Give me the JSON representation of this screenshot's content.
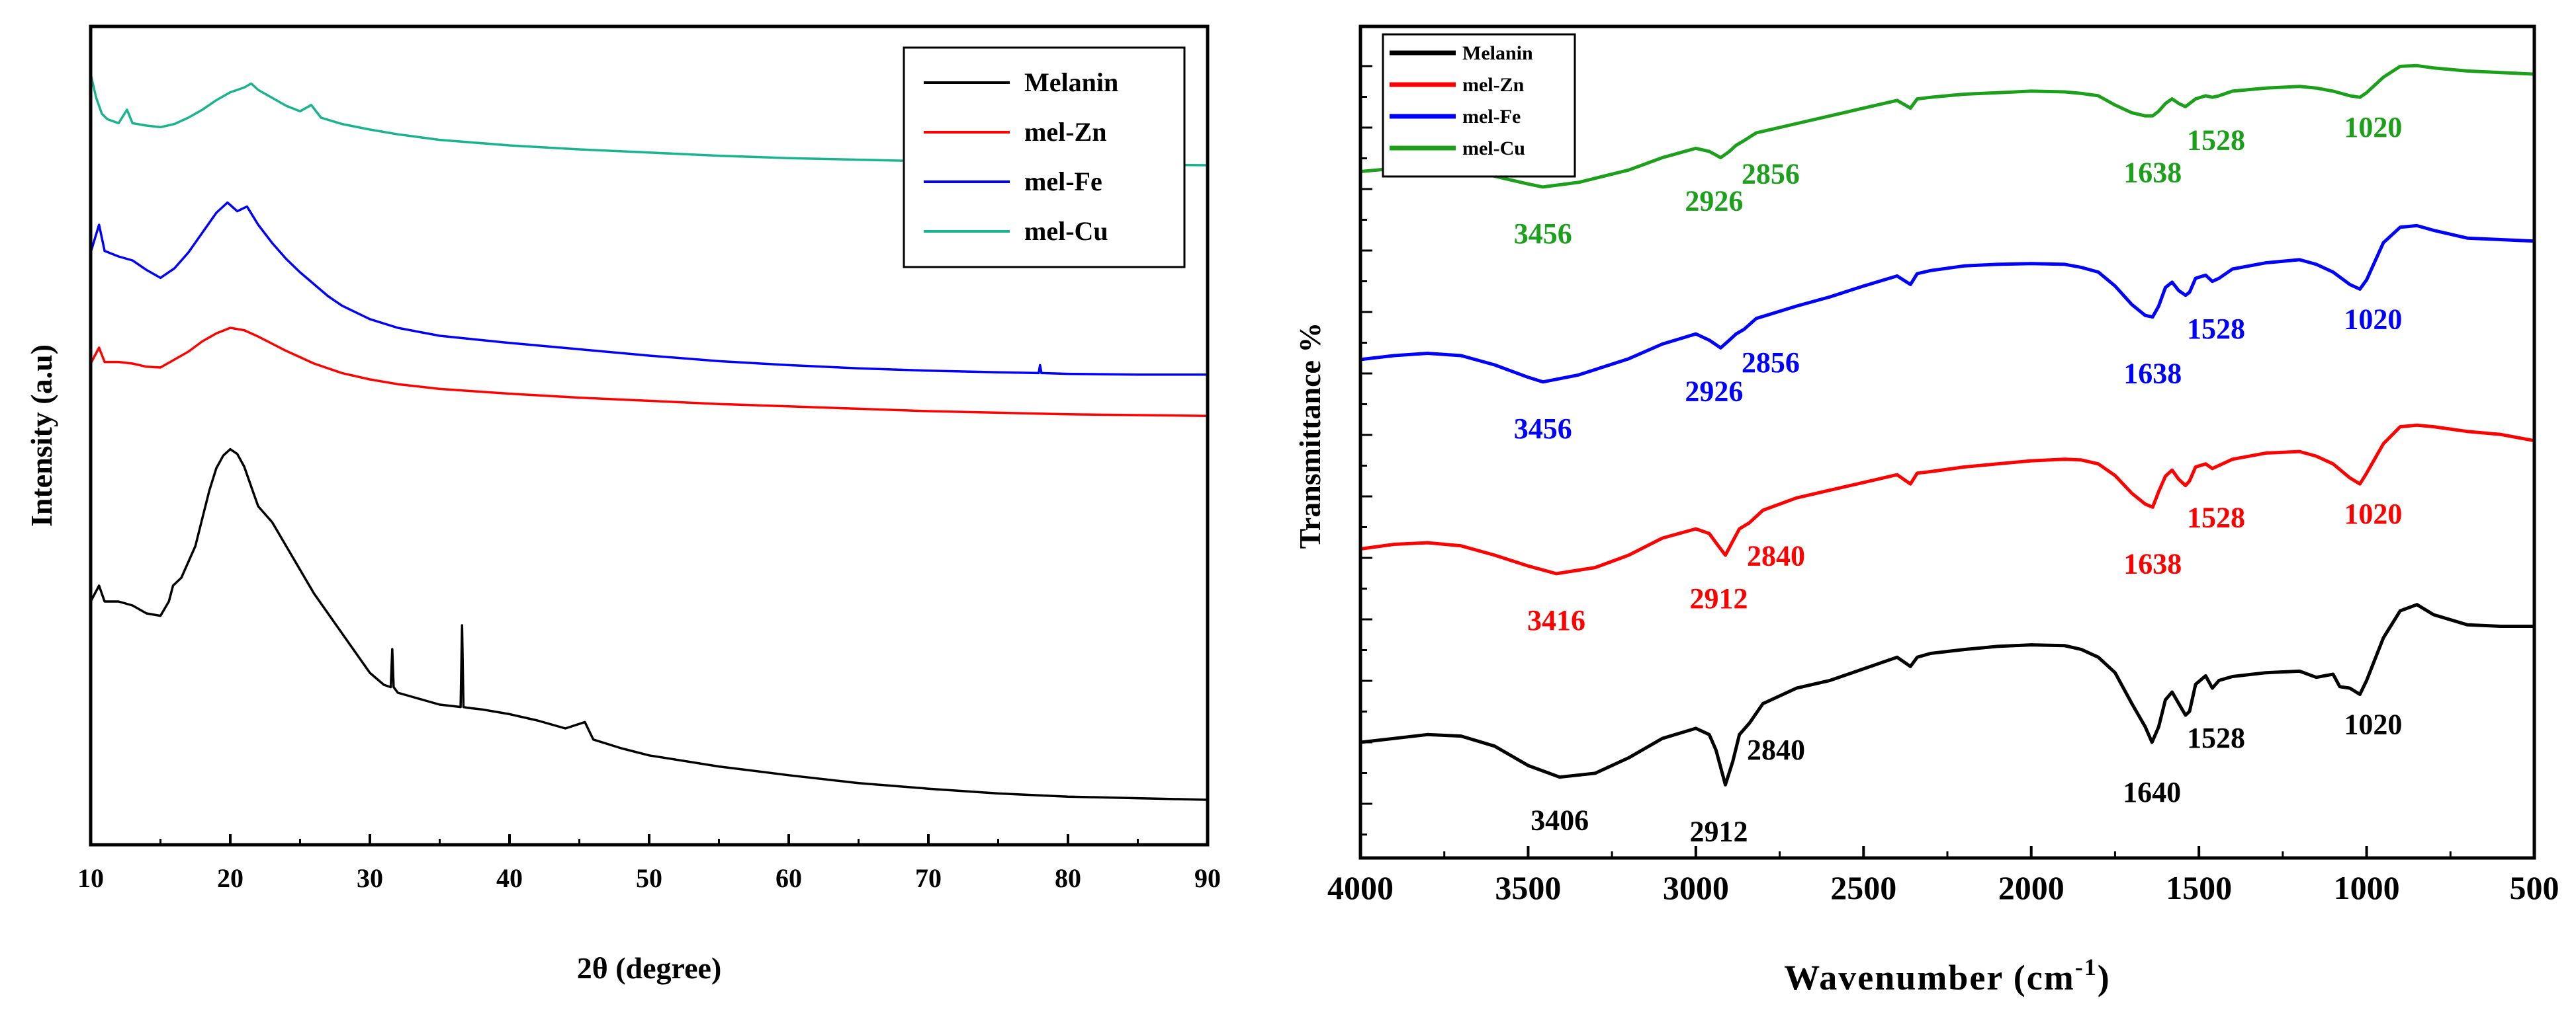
{
  "chart_data": [
    {
      "type": "line",
      "name": "xrd",
      "xlabel": "2θ (degree)",
      "ylabel": "Intensity (a.u)",
      "xlim": [
        10,
        90
      ],
      "ylim": [
        0,
        100
      ],
      "x_ticks": [
        10,
        20,
        30,
        40,
        50,
        60,
        70,
        80,
        90
      ],
      "x_tick_labels": [
        "10",
        "20",
        "30",
        "40",
        "50",
        "60",
        "70",
        "80",
        "90"
      ],
      "legend_position": "top-right",
      "series": [
        {
          "name": "Melanin",
          "color": "#000000",
          "x": [
            10,
            10.6,
            11,
            12,
            13,
            14,
            15,
            15.6,
            15.9,
            16.5,
            17,
            17.5,
            18,
            18.5,
            19,
            19.5,
            20,
            20.5,
            21,
            21.5,
            22,
            23,
            24,
            25,
            26,
            27,
            28,
            29,
            30,
            31,
            31.5,
            31.6,
            31.7,
            32,
            33,
            34,
            35,
            36,
            36.5,
            36.6,
            36.7,
            37,
            38,
            40,
            42,
            44,
            45.4,
            46,
            48,
            50,
            55,
            60,
            65,
            70,
            75,
            80,
            85,
            90
          ],
          "y": [
            30,
            32,
            30,
            30,
            29.5,
            28.5,
            28.2,
            30,
            32,
            33,
            35,
            37,
            40.5,
            44,
            46.8,
            48.4,
            49.2,
            48.6,
            47,
            44.5,
            42,
            40,
            37,
            34,
            31,
            28.5,
            26,
            23.5,
            21,
            19.5,
            19.2,
            24,
            19.2,
            18.5,
            18,
            17.5,
            17,
            16.8,
            16.7,
            27,
            16.7,
            16.6,
            16.4,
            15.8,
            15,
            14,
            14.8,
            12.6,
            11.5,
            10.6,
            9.2,
            8.1,
            7.1,
            6.4,
            5.8,
            5.4,
            5.2,
            5
          ]
        },
        {
          "name": "mel-Zn",
          "color": "#ff0000",
          "x": [
            10,
            10.6,
            11,
            12,
            13,
            14,
            15,
            16,
            17,
            18,
            19,
            20,
            21,
            22,
            23,
            24,
            25,
            26,
            28,
            30,
            32,
            35,
            40,
            45,
            50,
            55,
            60,
            65,
            70,
            75,
            80,
            85,
            90
          ],
          "y": [
            60,
            62,
            60.2,
            60.2,
            60,
            59.6,
            59.5,
            60.5,
            61.5,
            62.8,
            63.8,
            64.5,
            64.2,
            63.4,
            62.5,
            61.6,
            60.8,
            60,
            58.8,
            58,
            57.4,
            56.8,
            56.2,
            55.7,
            55.3,
            54.9,
            54.6,
            54.3,
            54,
            53.8,
            53.6,
            53.5,
            53.4
          ]
        },
        {
          "name": "mel-Fe",
          "color": "#0000ff",
          "x": [
            10,
            10.6,
            11,
            12,
            13,
            14,
            15,
            16,
            17,
            18,
            19,
            19.8,
            20.5,
            21.2,
            22,
            23,
            24,
            25,
            26,
            27,
            28,
            30,
            32,
            35,
            40,
            45,
            50,
            55,
            60,
            65,
            70,
            75,
            77.9,
            78,
            78.1,
            80,
            85,
            90
          ],
          "y": [
            74,
            77.5,
            74.2,
            73.5,
            73,
            71.8,
            70.8,
            72,
            74,
            76.5,
            79,
            80.3,
            79.2,
            79.8,
            77.5,
            75.2,
            73.2,
            71.5,
            70,
            68.5,
            67.3,
            65.6,
            64.5,
            63.5,
            62.6,
            61.8,
            61,
            60.3,
            59.8,
            59.4,
            59.1,
            58.9,
            58.8,
            59.8,
            58.8,
            58.7,
            58.6,
            58.6
          ]
        },
        {
          "name": "mel-Cu",
          "color": "#19b38e",
          "x": [
            10,
            10.4,
            10.8,
            11.2,
            12,
            12.6,
            13,
            14,
            15,
            16,
            17,
            18,
            19,
            20,
            21,
            21.5,
            22,
            23,
            24,
            25,
            25.8,
            26.5,
            28,
            30,
            32,
            35,
            40,
            45,
            50,
            55,
            60,
            65,
            70,
            75,
            80,
            85,
            90
          ],
          "y": [
            96.5,
            93.5,
            91.5,
            90.8,
            90.3,
            92,
            90.3,
            90,
            89.8,
            90.2,
            91,
            92,
            93.2,
            94.2,
            94.8,
            95.3,
            94.5,
            93.5,
            92.5,
            91.8,
            92.6,
            91,
            90.2,
            89.5,
            88.9,
            88.2,
            87.5,
            87,
            86.6,
            86.2,
            85.9,
            85.7,
            85.5,
            85.3,
            85.2,
            85.1,
            85
          ]
        }
      ]
    },
    {
      "type": "line",
      "name": "ftir",
      "xlabel": "Wavenumber (cm",
      "xlabel_sup": "-1",
      "xlabel_end": ")",
      "ylabel": "Transmittance %",
      "xlim": [
        4000,
        500
      ],
      "ylim": [
        0,
        100
      ],
      "x_ticks": [
        4000,
        3500,
        3000,
        2500,
        2000,
        1500,
        1000,
        500
      ],
      "x_tick_labels": [
        "4000",
        "3500",
        "3000",
        "2500",
        "2000",
        "1500",
        "1000",
        "500"
      ],
      "legend_position": "top-left",
      "series": [
        {
          "name": "Melanin",
          "color": "#000000",
          "x": [
            4000,
            3900,
            3800,
            3700,
            3600,
            3500,
            3406,
            3300,
            3200,
            3100,
            3000,
            2960,
            2940,
            2912,
            2890,
            2870,
            2840,
            2800,
            2700,
            2600,
            2500,
            2400,
            2360,
            2340,
            2300,
            2200,
            2100,
            2000,
            1900,
            1850,
            1800,
            1750,
            1700,
            1660,
            1640,
            1620,
            1600,
            1580,
            1560,
            1540,
            1528,
            1510,
            1480,
            1460,
            1440,
            1400,
            1300,
            1200,
            1150,
            1100,
            1080,
            1050,
            1020,
            1000,
            950,
            900,
            850,
            800,
            700,
            600,
            500
          ],
          "y": [
            10,
            10.5,
            11,
            10.8,
            9.5,
            7,
            5.5,
            6,
            8,
            10.5,
            11.8,
            11,
            9,
            4.5,
            7.5,
            11,
            12.5,
            15,
            17,
            18,
            19.5,
            21,
            19.8,
            21,
            21.5,
            22,
            22.4,
            22.6,
            22.5,
            22,
            21,
            19,
            15,
            12,
            10,
            12,
            15.5,
            16.5,
            15,
            13.5,
            14,
            17.5,
            18.6,
            17,
            18,
            18.5,
            19,
            19.2,
            18.4,
            18.8,
            17.2,
            17,
            16.2,
            18,
            23.5,
            27,
            27.8,
            26.5,
            25.2,
            25,
            25
          ]
        },
        {
          "name": "mel-Zn",
          "color": "#ff0000",
          "x": [
            4000,
            3900,
            3800,
            3700,
            3600,
            3500,
            3416,
            3300,
            3200,
            3100,
            3000,
            2960,
            2940,
            2912,
            2890,
            2870,
            2840,
            2800,
            2700,
            2600,
            2500,
            2400,
            2360,
            2340,
            2300,
            2200,
            2100,
            2000,
            1900,
            1850,
            1800,
            1750,
            1700,
            1660,
            1638,
            1620,
            1600,
            1580,
            1560,
            1540,
            1528,
            1510,
            1480,
            1460,
            1440,
            1400,
            1300,
            1200,
            1150,
            1100,
            1050,
            1020,
            1000,
            950,
            900,
            850,
            800,
            700,
            600,
            500
          ],
          "y": [
            35,
            35.6,
            35.8,
            35.4,
            34.2,
            32.8,
            31.8,
            32.6,
            34.2,
            36.4,
            37.6,
            37,
            35.8,
            34.2,
            36,
            37.6,
            38.4,
            40,
            41.6,
            42.6,
            43.6,
            44.6,
            43.4,
            44.8,
            45,
            45.6,
            46,
            46.4,
            46.6,
            46.5,
            46,
            44.5,
            42.2,
            40.8,
            40.4,
            42.4,
            44.4,
            45.2,
            44,
            43.2,
            43.8,
            45.6,
            46,
            45.4,
            45.8,
            46.6,
            47.4,
            47.6,
            47,
            46,
            44.2,
            43.4,
            44.8,
            48.6,
            50.8,
            51,
            50.8,
            50.2,
            49.8,
            49
          ]
        },
        {
          "name": "mel-Fe",
          "color": "#0000ff",
          "x": [
            4000,
            3900,
            3800,
            3700,
            3600,
            3500,
            3456,
            3350,
            3200,
            3100,
            3000,
            2960,
            2926,
            2900,
            2880,
            2856,
            2820,
            2700,
            2600,
            2500,
            2400,
            2360,
            2340,
            2300,
            2200,
            2100,
            2000,
            1900,
            1850,
            1800,
            1750,
            1700,
            1660,
            1638,
            1620,
            1600,
            1580,
            1560,
            1540,
            1528,
            1510,
            1480,
            1460,
            1440,
            1400,
            1300,
            1200,
            1150,
            1100,
            1050,
            1020,
            1000,
            950,
            900,
            850,
            800,
            700,
            600,
            500
          ],
          "y": [
            59.5,
            60,
            60.3,
            60,
            58.8,
            57.2,
            56.6,
            57.5,
            59.6,
            61.5,
            62.8,
            62,
            61,
            62,
            62.8,
            63.4,
            64.8,
            66.4,
            67.6,
            69,
            70.3,
            69.2,
            70.6,
            71,
            71.6,
            71.8,
            71.9,
            71.8,
            71.4,
            70.8,
            69,
            66.6,
            65.2,
            65,
            66.4,
            68.8,
            69.5,
            68.4,
            67.8,
            68.2,
            70,
            70.4,
            69.6,
            70,
            71.2,
            72,
            72.4,
            71.8,
            70.8,
            69.2,
            68.6,
            69.8,
            74.6,
            76.6,
            76.8,
            76.2,
            75.2,
            75,
            74.8
          ]
        },
        {
          "name": "mel-Cu",
          "color": "#1ca01c",
          "x": [
            4000,
            3900,
            3800,
            3700,
            3600,
            3500,
            3456,
            3350,
            3200,
            3100,
            3000,
            2960,
            2926,
            2900,
            2880,
            2856,
            2820,
            2700,
            2600,
            2500,
            2400,
            2360,
            2340,
            2300,
            2200,
            2100,
            2000,
            1900,
            1850,
            1800,
            1750,
            1700,
            1660,
            1638,
            1620,
            1600,
            1580,
            1560,
            1540,
            1528,
            1510,
            1480,
            1460,
            1440,
            1400,
            1300,
            1200,
            1150,
            1100,
            1050,
            1020,
            1000,
            950,
            900,
            850,
            800,
            700,
            600,
            500
          ],
          "y": [
            83.8,
            84.2,
            84.4,
            84.2,
            83.2,
            82.2,
            81.8,
            82.4,
            84,
            85.6,
            86.8,
            86.4,
            85.6,
            86.4,
            87.2,
            87.8,
            88.8,
            90,
            91,
            92,
            93,
            92,
            93.2,
            93.4,
            93.8,
            94,
            94.2,
            94.1,
            93.9,
            93.6,
            92.4,
            91.4,
            91,
            91,
            91.6,
            92.6,
            93.2,
            92.6,
            92.2,
            92.6,
            93.2,
            93.6,
            93.4,
            93.6,
            94.2,
            94.6,
            94.8,
            94.6,
            94.2,
            93.6,
            93.4,
            94,
            96,
            97.4,
            97.5,
            97.2,
            96.8,
            96.6,
            96.4
          ]
        }
      ],
      "annotations": [
        {
          "series": "mel-Cu",
          "labels": [
            "3456",
            "2926",
            "2856",
            "1638",
            "1528",
            "1020"
          ]
        },
        {
          "series": "mel-Fe",
          "labels": [
            "3456",
            "2926",
            "2856",
            "1638",
            "1528",
            "1020"
          ]
        },
        {
          "series": "mel-Zn",
          "labels": [
            "3416",
            "2912",
            "2840",
            "1638",
            "1528",
            "1020"
          ]
        },
        {
          "series": "Melanin",
          "labels": [
            "3406",
            "2912",
            "2840",
            "1640",
            "1528",
            "1020"
          ]
        }
      ]
    }
  ]
}
